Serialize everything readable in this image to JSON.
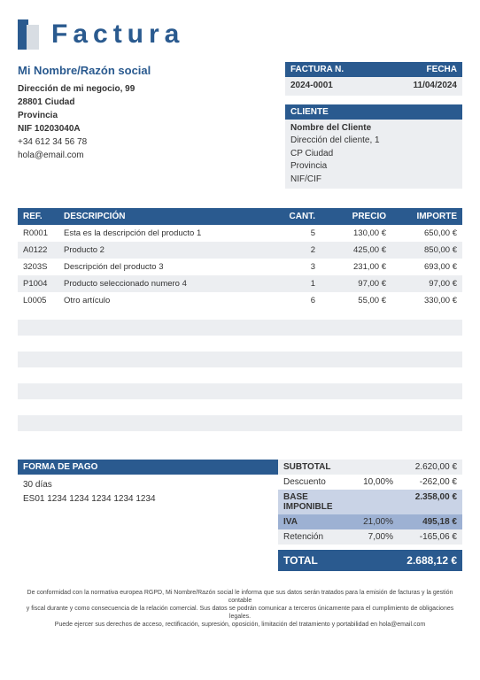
{
  "title": "Factura",
  "sender": {
    "name": "Mi Nombre/Razón social",
    "address": "Dirección de mi negocio, 99",
    "city": "28801 Ciudad",
    "province": "Provincia",
    "nif": "NIF 10203040A",
    "phone": "+34 612 34 56 78",
    "email": "hola@email.com"
  },
  "invoiceMeta": {
    "numberLabel": "FACTURA N.",
    "dateLabel": "FECHA",
    "number": "2024-0001",
    "date": "11/04/2024"
  },
  "client": {
    "header": "CLIENTE",
    "name": "Nombre del Cliente",
    "address": "Dirección del cliente, 1",
    "city": "CP Ciudad",
    "province": "Provincia",
    "nif": "NIF/CIF"
  },
  "items": {
    "headers": {
      "ref": "REF.",
      "desc": "DESCRIPCIÓN",
      "qty": "CANT.",
      "price": "PRECIO",
      "amt": "IMPORTE"
    },
    "rows": [
      {
        "ref": "R0001",
        "desc": "Esta es la descripción del producto 1",
        "qty": "5",
        "price": "130,00 €",
        "amt": "650,00 €"
      },
      {
        "ref": "A0122",
        "desc": "Producto 2",
        "qty": "2",
        "price": "425,00 €",
        "amt": "850,00 €"
      },
      {
        "ref": "3203S",
        "desc": "Descripción del producto 3",
        "qty": "3",
        "price": "231,00 €",
        "amt": "693,00 €"
      },
      {
        "ref": "P1004",
        "desc": "Producto seleccionado numero 4",
        "qty": "1",
        "price": "97,00 €",
        "amt": "97,00 €"
      },
      {
        "ref": "L0005",
        "desc": "Otro artículo",
        "qty": "6",
        "price": "55,00 €",
        "amt": "330,00 €"
      }
    ],
    "emptyRowCount": 8
  },
  "payment": {
    "header": "FORMA DE PAGO",
    "terms": "30 días",
    "iban": "ES01 1234 1234 1234 1234 1234"
  },
  "totals": {
    "subtotal": {
      "label": "SUBTOTAL",
      "pct": "",
      "value": "2.620,00 €"
    },
    "discount": {
      "label": "Descuento",
      "pct": "10,00%",
      "value": "-262,00 €"
    },
    "base": {
      "label": "BASE IMPONIBLE",
      "pct": "",
      "value": "2.358,00 €"
    },
    "iva": {
      "label": "IVA",
      "pct": "21,00%",
      "value": "495,18 €"
    },
    "retention": {
      "label": "Retención",
      "pct": "7,00%",
      "value": "-165,06 €"
    },
    "total": {
      "label": "TOTAL",
      "pct": "",
      "value": "2.688,12 €"
    }
  },
  "legal": {
    "l1": "De conformidad con la normativa europea RGPD, Mi Nombre/Razón social le informa que sus datos serán tratados para la emisión de facturas y la gestión contable",
    "l2": "y fiscal durante y como consecuencia de la relación comercial. Sus datos se podrán comunicar a terceros únicamente para el cumplimiento de obligaciones legales.",
    "l3": "Puede ejercer sus derechos de acceso, rectificación, supresión, oposición, limitación del tratamiento y portabilidad en hola@email.com"
  },
  "colors": {
    "primary": "#2a5a8f",
    "greylight": "#eceef1",
    "bluelight": "#c9d3e6",
    "bluemid": "#9db1d3"
  }
}
